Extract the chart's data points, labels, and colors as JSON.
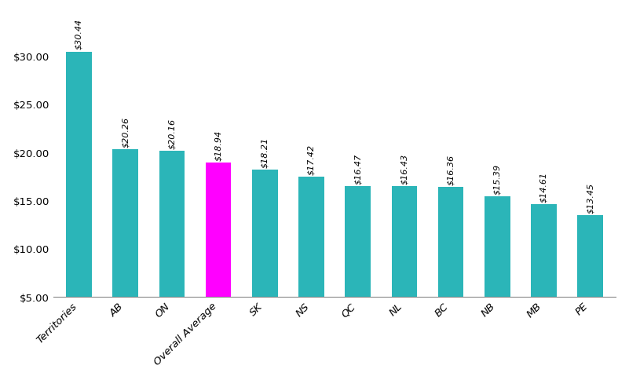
{
  "categories": [
    "Territories",
    "AB",
    "ON",
    "Overall Average",
    "SK",
    "NS",
    "QC",
    "NL",
    "BC",
    "NB",
    "MB",
    "PE"
  ],
  "values": [
    30.44,
    20.26,
    20.16,
    18.94,
    18.21,
    17.42,
    16.47,
    16.43,
    16.36,
    15.39,
    14.61,
    13.45
  ],
  "labels": [
    "$30.44",
    "$20.26",
    "$20.16",
    "$18.94",
    "$18.21",
    "$17.42",
    "$16.47",
    "$16.43",
    "$16.36",
    "$15.39",
    "$14.61",
    "$13.45"
  ],
  "bar_colors": [
    "#2BB5B8",
    "#2BB5B8",
    "#2BB5B8",
    "#FF00FF",
    "#2BB5B8",
    "#2BB5B8",
    "#2BB5B8",
    "#2BB5B8",
    "#2BB5B8",
    "#2BB5B8",
    "#2BB5B8",
    "#2BB5B8"
  ],
  "ymin": 5.0,
  "ylim": [
    5.0,
    34.5
  ],
  "yticks": [
    5.0,
    10.0,
    15.0,
    20.0,
    25.0,
    30.0
  ],
  "background_color": "#FFFFFF",
  "label_fontsize": 8.0,
  "tick_fontsize": 9.5,
  "bar_width": 0.55
}
